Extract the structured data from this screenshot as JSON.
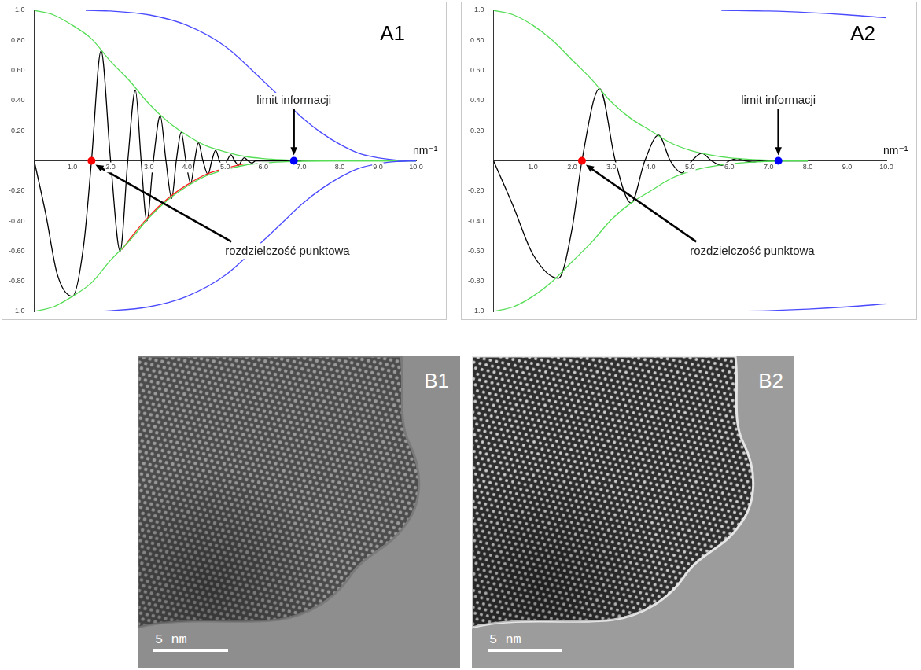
{
  "chart_data": [
    {
      "type": "line",
      "title": "A1",
      "xlabel": "nm⁻¹",
      "grid": false,
      "xlim": [
        0,
        10
      ],
      "xticks": [
        {
          "value": 1,
          "label": "1.0"
        },
        {
          "value": 2,
          "label": "2.0"
        },
        {
          "value": 3,
          "label": "3.0"
        },
        {
          "value": 4,
          "label": "4.0"
        },
        {
          "value": 5,
          "label": "5.0"
        },
        {
          "value": 6,
          "label": "6.0"
        },
        {
          "value": 7,
          "label": "7.0"
        },
        {
          "value": 8,
          "label": "8.0"
        },
        {
          "value": 9,
          "label": "9.0"
        },
        {
          "value": 10,
          "label": "10.0"
        }
      ],
      "ylim": [
        -1,
        1
      ],
      "yticks": [
        {
          "value": 1,
          "label": "1.0"
        },
        {
          "value": 0.8,
          "label": "0.80"
        },
        {
          "value": 0.6,
          "label": "0.60"
        },
        {
          "value": 0.4,
          "label": "0.40"
        },
        {
          "value": 0.2,
          "label": "0.20"
        },
        {
          "value": -0.2,
          "label": "-0.20"
        },
        {
          "value": -0.4,
          "label": "-0.40"
        },
        {
          "value": -0.6,
          "label": "-0.60"
        },
        {
          "value": -0.8,
          "label": "-0.80"
        },
        {
          "value": -1,
          "label": "-1.0"
        }
      ],
      "series": [
        {
          "color": "#4a4aff",
          "x": [
            1.35,
            2,
            3,
            4,
            5,
            6,
            6.5,
            7,
            7.5,
            8,
            8.5,
            9,
            9.5,
            10
          ],
          "values": [
            1,
            0.995,
            0.97,
            0.9,
            0.76,
            0.53,
            0.41,
            0.29,
            0.19,
            0.11,
            0.05,
            0.02,
            0.005,
            0
          ]
        },
        {
          "color": "#4a4aff",
          "x": [
            1.35,
            2,
            3,
            4,
            5,
            6,
            6.5,
            7,
            7.5,
            8,
            8.5,
            9,
            9.5,
            10
          ],
          "values": [
            -1,
            -0.995,
            -0.97,
            -0.9,
            -0.76,
            -0.53,
            -0.41,
            -0.29,
            -0.19,
            -0.11,
            -0.05,
            -0.02,
            -0.005,
            0
          ]
        },
        {
          "color": "#55dd55",
          "x": [
            0,
            0.5,
            1,
            1.5,
            2,
            2.5,
            3,
            3.5,
            4,
            4.5,
            5,
            5.5,
            6,
            6.5,
            7,
            8,
            10
          ],
          "values": [
            1,
            0.97,
            0.9,
            0.81,
            0.66,
            0.53,
            0.38,
            0.26,
            0.17,
            0.1,
            0.06,
            0.03,
            0.015,
            0.007,
            0.003,
            0,
            0
          ]
        },
        {
          "color": "#55dd55",
          "x": [
            0,
            0.5,
            1,
            1.5,
            2,
            2.5,
            3,
            3.5,
            4,
            4.5,
            5,
            5.5,
            6,
            6.5,
            7,
            8,
            10
          ],
          "values": [
            -1,
            -0.97,
            -0.9,
            -0.81,
            -0.66,
            -0.53,
            -0.38,
            -0.26,
            -0.17,
            -0.1,
            -0.06,
            -0.03,
            -0.015,
            -0.007,
            -0.003,
            0,
            0
          ]
        },
        {
          "color": "#ff2020",
          "x": [
            2.3,
            2.5,
            3,
            3.5,
            4,
            4.5,
            5,
            5.5
          ],
          "values": [
            -0.59,
            -0.52,
            -0.37,
            -0.25,
            -0.16,
            -0.09,
            -0.05,
            -0.02
          ]
        },
        {
          "color": "#000000",
          "x": [
            0,
            0.3,
            0.6,
            1.0,
            1.3,
            1.5,
            1.75,
            2.0,
            2.25,
            2.45,
            2.65,
            2.8,
            2.95,
            3.12,
            3.3,
            3.45,
            3.6,
            3.72,
            3.85,
            3.97,
            4.1,
            4.2,
            4.3,
            4.42,
            4.55,
            4.65,
            4.75,
            4.85,
            4.95,
            5.05,
            5.15,
            5.25,
            5.35,
            5.43,
            5.5,
            5.6,
            5.7,
            5.8,
            6.0,
            6.5,
            7.0
          ],
          "values": [
            0,
            -0.35,
            -0.75,
            -0.9,
            -0.55,
            0,
            0.73,
            0,
            -0.6,
            0,
            0.47,
            0,
            -0.4,
            0,
            0.3,
            0,
            -0.25,
            0,
            0.19,
            0,
            -0.15,
            0,
            0.12,
            0,
            -0.09,
            0,
            0.07,
            0,
            -0.05,
            0,
            0.04,
            0,
            -0.03,
            0,
            0.02,
            0,
            -0.015,
            0,
            0,
            0,
            0
          ]
        }
      ],
      "annotations": [
        {
          "text": "limit informacji",
          "x": 6.8,
          "y": 0,
          "color": "#0000ff"
        },
        {
          "text": "rozdzielczość punktowa",
          "x": 1.5,
          "y": 0,
          "color": "#ff0000"
        }
      ]
    },
    {
      "type": "line",
      "title": "A2",
      "xlabel": "nm⁻¹",
      "grid": false,
      "xlim": [
        0,
        10
      ],
      "xticks": [
        {
          "value": 1,
          "label": "1.0"
        },
        {
          "value": 2,
          "label": "2.0"
        },
        {
          "value": 3,
          "label": "3.0"
        },
        {
          "value": 4,
          "label": "4.0"
        },
        {
          "value": 5,
          "label": "5.0"
        },
        {
          "value": 6,
          "label": "6.0"
        },
        {
          "value": 7,
          "label": "7.0"
        },
        {
          "value": 8,
          "label": "8.0"
        },
        {
          "value": 9,
          "label": "9.0"
        },
        {
          "value": 10,
          "label": "10.0"
        }
      ],
      "ylim": [
        -1,
        1
      ],
      "yticks": [
        {
          "value": 1,
          "label": "1.0"
        },
        {
          "value": 0.8,
          "label": "0.80"
        },
        {
          "value": 0.6,
          "label": "0.60"
        },
        {
          "value": 0.4,
          "label": "0.40"
        },
        {
          "value": 0.2,
          "label": "0.20"
        },
        {
          "value": -0.2,
          "label": "-0.20"
        },
        {
          "value": -0.4,
          "label": "-0.40"
        },
        {
          "value": -0.6,
          "label": "-0.60"
        },
        {
          "value": -0.8,
          "label": "-0.80"
        },
        {
          "value": -1,
          "label": "-1.0"
        }
      ],
      "series": [
        {
          "color": "#4a4aff",
          "x": [
            5.8,
            7,
            8,
            9,
            10
          ],
          "values": [
            1,
            0.995,
            0.985,
            0.97,
            0.95
          ]
        },
        {
          "color": "#4a4aff",
          "x": [
            5.8,
            7,
            8,
            9,
            10
          ],
          "values": [
            -1,
            -0.995,
            -0.985,
            -0.97,
            -0.95
          ]
        },
        {
          "color": "#55dd55",
          "x": [
            0,
            0.5,
            1,
            1.5,
            2,
            2.5,
            3,
            3.5,
            4,
            4.5,
            5,
            5.5,
            6,
            6.5,
            7,
            7.5,
            8
          ],
          "values": [
            1,
            0.97,
            0.9,
            0.8,
            0.67,
            0.54,
            0.39,
            0.28,
            0.2,
            0.12,
            0.07,
            0.04,
            0.02,
            0.01,
            0.004,
            0,
            0
          ]
        },
        {
          "color": "#55dd55",
          "x": [
            0,
            0.5,
            1,
            1.5,
            2,
            2.5,
            3,
            3.5,
            4,
            4.5,
            5,
            5.5,
            6,
            6.5,
            7,
            7.5,
            8
          ],
          "values": [
            -1,
            -0.97,
            -0.9,
            -0.8,
            -0.67,
            -0.54,
            -0.39,
            -0.28,
            -0.2,
            -0.12,
            -0.07,
            -0.04,
            -0.02,
            -0.01,
            -0.004,
            0,
            0
          ]
        },
        {
          "color": "#000000",
          "x": [
            0,
            0.5,
            1,
            1.65,
            2,
            2.25,
            2.7,
            3.1,
            3.5,
            3.85,
            4.2,
            4.5,
            4.8,
            5.05,
            5.3,
            5.55,
            5.8,
            6,
            6.2,
            6.4,
            6.6,
            6.8,
            7,
            8
          ],
          "values": [
            0,
            -0.3,
            -0.62,
            -0.78,
            -0.45,
            0,
            0.48,
            0,
            -0.28,
            0,
            0.17,
            0,
            -0.08,
            0,
            0.05,
            0,
            -0.03,
            0,
            0.015,
            0,
            -0.008,
            0,
            0,
            0
          ]
        }
      ],
      "annotations": [
        {
          "text": "limit informacji",
          "x": 7.25,
          "y": 0,
          "color": "#0000ff"
        },
        {
          "text": "rozdzielczość punktowa",
          "x": 2.25,
          "y": 0,
          "color": "#ff0000"
        }
      ]
    }
  ],
  "images": [
    {
      "title": "B1",
      "scale_bar": "5 nm"
    },
    {
      "title": "B2",
      "scale_bar": "5 nm"
    }
  ]
}
